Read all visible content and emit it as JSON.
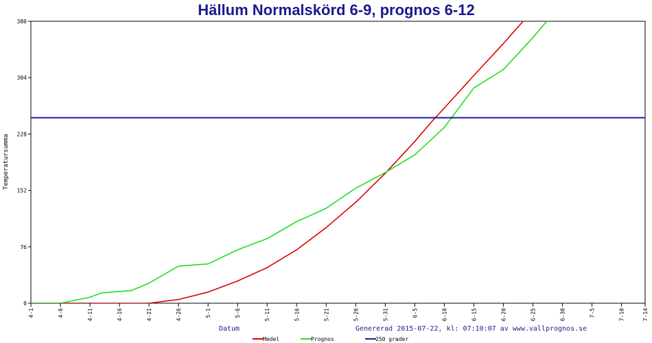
{
  "chart_data": {
    "type": "line",
    "title": "Hällum Normalskörd 6-9, prognos 6-12",
    "xlabel": "Datum",
    "ylabel": "Temperatursumma",
    "footer_note": "Genererad 2015-07-22, kl: 07:10:07 av www.vallprognos.se",
    "ylim": [
      0,
      380
    ],
    "y_ticks": [
      "0",
      "76",
      "152",
      "228",
      "304",
      "380"
    ],
    "x_ticks": [
      "4-1",
      "4-6",
      "4-11",
      "4-16",
      "4-21",
      "4-26",
      "5-1",
      "5-6",
      "5-11",
      "5-16",
      "5-21",
      "5-26",
      "5-31",
      "6-5",
      "6-10",
      "6-15",
      "6-20",
      "6-25",
      "6-30",
      "7-5",
      "7-10",
      "7-14"
    ],
    "grid": false,
    "legend_position": "bottom",
    "series": [
      {
        "name": "Medel",
        "color": "#dd0000",
        "points": [
          [
            "4-1",
            0
          ],
          [
            "4-21",
            0
          ],
          [
            "4-26",
            5
          ],
          [
            "5-1",
            15
          ],
          [
            "5-6",
            30
          ],
          [
            "5-11",
            48
          ],
          [
            "5-16",
            72
          ],
          [
            "5-21",
            102
          ],
          [
            "5-26",
            136
          ],
          [
            "5-31",
            175
          ],
          [
            "6-5",
            218
          ],
          [
            "6-8",
            246
          ],
          [
            "6-10",
            263
          ],
          [
            "6-15",
            307
          ],
          [
            "6-20",
            350
          ],
          [
            "6-25",
            395
          ]
        ]
      },
      {
        "name": "Prognos",
        "color": "#22dd22",
        "points": [
          [
            "4-1",
            0
          ],
          [
            "4-6",
            0
          ],
          [
            "4-11",
            8
          ],
          [
            "4-13",
            14
          ],
          [
            "4-18",
            17
          ],
          [
            "4-21",
            27
          ],
          [
            "4-26",
            50
          ],
          [
            "5-1",
            53
          ],
          [
            "5-6",
            72
          ],
          [
            "5-11",
            87
          ],
          [
            "5-16",
            110
          ],
          [
            "5-21",
            128
          ],
          [
            "5-26",
            155
          ],
          [
            "5-31",
            176
          ],
          [
            "6-5",
            200
          ],
          [
            "6-10",
            237
          ],
          [
            "6-15",
            290
          ],
          [
            "6-20",
            315
          ],
          [
            "6-25",
            358
          ],
          [
            "6-30",
            405
          ]
        ]
      },
      {
        "name": "250 grader",
        "color": "#1a1aa8",
        "points": [
          [
            "4-1",
            250
          ],
          [
            "7-14",
            250
          ]
        ]
      }
    ]
  }
}
